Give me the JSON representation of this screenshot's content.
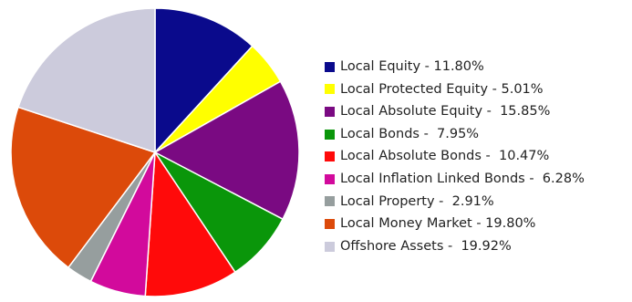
{
  "chart_data": {
    "type": "pie",
    "title": "",
    "legend_position": "right",
    "start_angle_deg": 0,
    "direction": "clockwise",
    "slices": [
      {
        "label": "Local Equity",
        "value": 11.8,
        "legend_text": "Local Equity - 11.80%",
        "color": "#0a0a8c"
      },
      {
        "label": "Local Protected Equity",
        "value": 5.01,
        "legend_text": "Local Protected Equity - 5.01%",
        "color": "#ffff00"
      },
      {
        "label": "Local Absolute Equity",
        "value": 15.85,
        "legend_text": "Local Absolute Equity -  15.85%",
        "color": "#7a0a82"
      },
      {
        "label": "Local Bonds",
        "value": 7.95,
        "legend_text": "Local Bonds -  7.95%",
        "color": "#0a960a"
      },
      {
        "label": "Local Absolute Bonds",
        "value": 10.47,
        "legend_text": "Local Absolute Bonds -  10.47%",
        "color": "#ff0a0a"
      },
      {
        "label": "Local Inflation Linked Bonds",
        "value": 6.28,
        "legend_text": "Local Inflation Linked Bonds -  6.28%",
        "color": "#d20a9c"
      },
      {
        "label": "Local Property",
        "value": 2.91,
        "legend_text": "Local Property -  2.91%",
        "color": "#969e9e"
      },
      {
        "label": "Local Money Market",
        "value": 19.8,
        "legend_text": "Local Money Market - 19.80%",
        "color": "#dc4a0a"
      },
      {
        "label": "Offshore Assets",
        "value": 19.92,
        "legend_text": "Offshore Assets -  19.92%",
        "color": "#cccbdc"
      }
    ]
  }
}
